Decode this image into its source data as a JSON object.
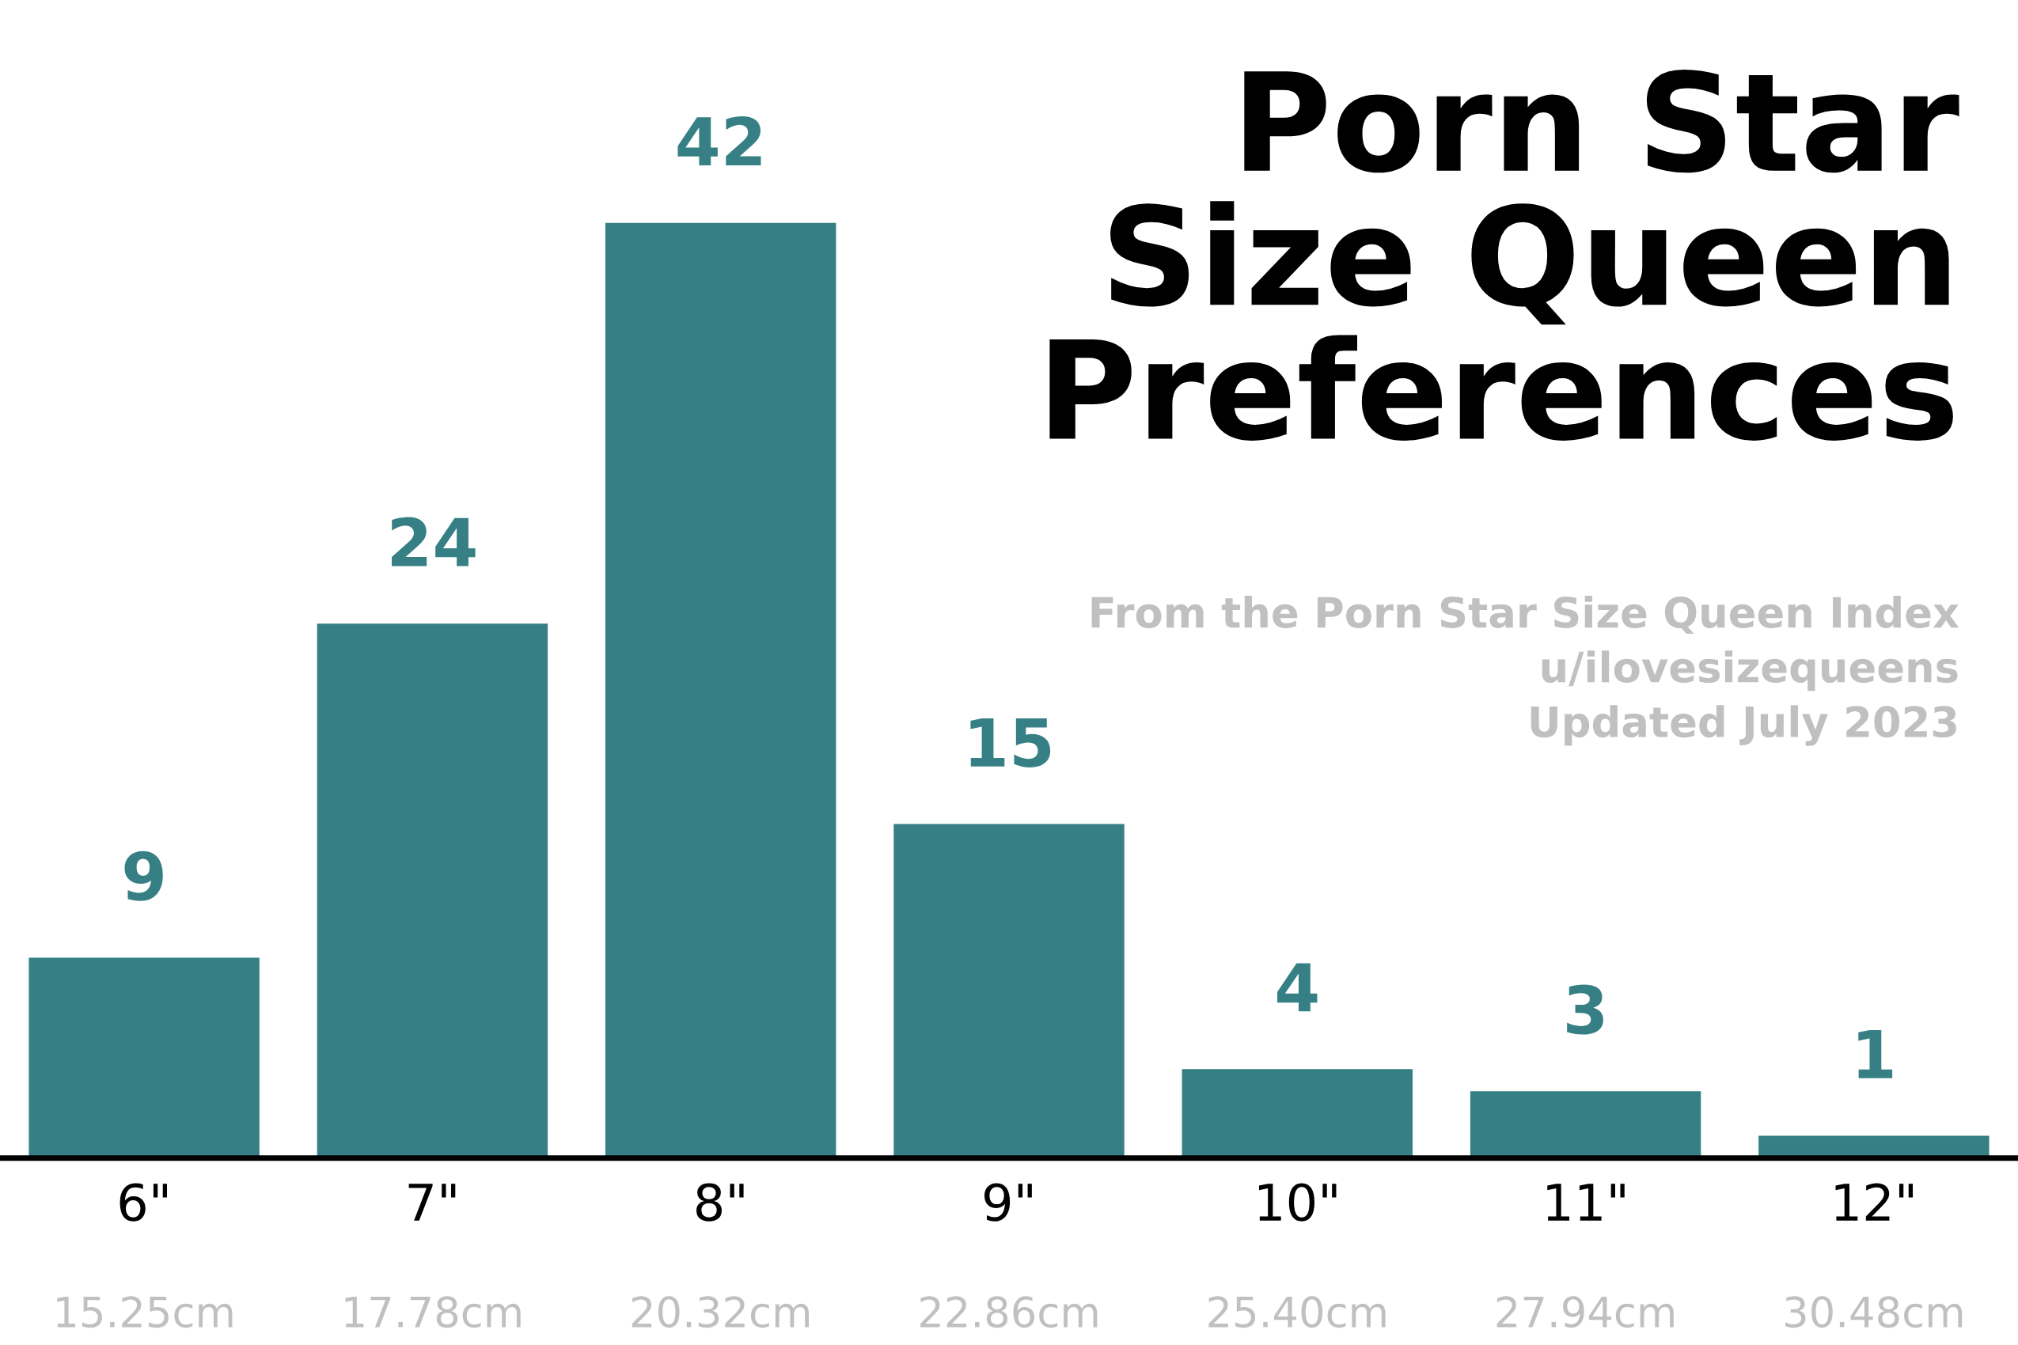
{
  "chart_data": {
    "type": "bar",
    "title": "Porn Star\nSize Queen\nPreferences",
    "subtitle": "From the Porn Star Size Queen Index\nu/ilovesizequeens\nUpdated July 2023",
    "categories": [
      "6\"",
      "7\"",
      "8\"",
      "9\"",
      "10\"",
      "11\"",
      "12\""
    ],
    "values": [
      9,
      24,
      42,
      15,
      4,
      3,
      1
    ],
    "color": "#368085",
    "data_labels": true,
    "grid": false,
    "annotations": [
      "15.25cm",
      "17.78cm",
      "20.32cm",
      "22.86cm",
      "25.40cm",
      "27.94cm",
      "30.48cm"
    ]
  }
}
